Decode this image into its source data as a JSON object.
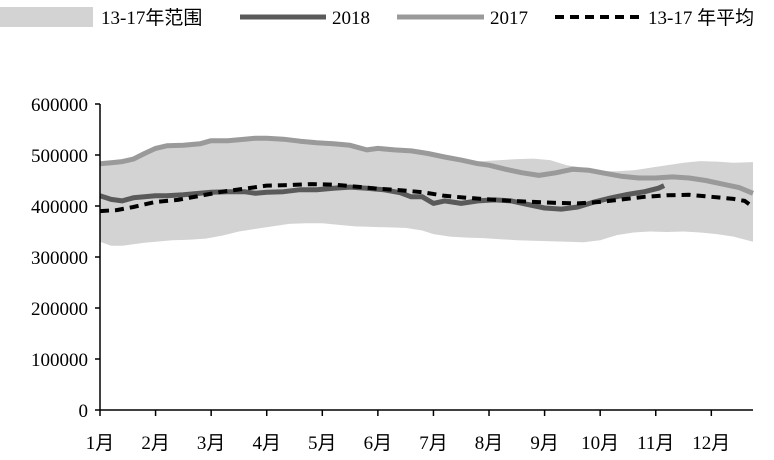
{
  "chart_data": {
    "type": "line",
    "xlabel": "",
    "ylabel": "",
    "x_tick_labels": [
      "1月",
      "2月",
      "3月",
      "4月",
      "5月",
      "6月",
      "7月",
      "8月",
      "9月",
      "10月",
      "11月",
      "12月"
    ],
    "y_tick_labels": [
      "0",
      "100000",
      "200000",
      "300000",
      "400000",
      "500000",
      "600000"
    ],
    "ylim": [
      0,
      600000
    ],
    "xlim": [
      1,
      12.75
    ],
    "grid": false,
    "legend_position": "top",
    "legend": {
      "range": "13-17年范围",
      "s2018": "2018",
      "s2017": "2017",
      "avg": "13-17 年平均"
    },
    "colors": {
      "range_fill": "#d3d3d3",
      "s2018": "#5a5a5a",
      "s2017": "#9a9a9a",
      "avg": "#000000"
    },
    "range": {
      "x": [
        1,
        1.2,
        1.4,
        1.6,
        1.8,
        2.0,
        2.3,
        2.6,
        2.9,
        3.2,
        3.5,
        3.8,
        4.1,
        4.4,
        4.7,
        5.0,
        5.3,
        5.6,
        5.9,
        6.2,
        6.5,
        6.8,
        7.0,
        7.3,
        7.6,
        7.9,
        8.2,
        8.5,
        8.8,
        9.1,
        9.4,
        9.7,
        10.0,
        10.3,
        10.6,
        10.9,
        11.2,
        11.5,
        11.8,
        12.1,
        12.4,
        12.75
      ],
      "upper": [
        485000,
        487000,
        490000,
        494000,
        505000,
        518000,
        520000,
        522000,
        528000,
        530000,
        533000,
        534000,
        532000,
        530000,
        527000,
        523000,
        519000,
        513000,
        511000,
        508000,
        505000,
        500000,
        497000,
        492000,
        488000,
        488000,
        490000,
        492000,
        493000,
        490000,
        480000,
        475000,
        468000,
        468000,
        470000,
        475000,
        480000,
        485000,
        488000,
        487000,
        485000,
        486000
      ],
      "lower": [
        330000,
        322000,
        322000,
        325000,
        328000,
        330000,
        333000,
        334000,
        336000,
        342000,
        350000,
        355000,
        360000,
        365000,
        366000,
        366000,
        363000,
        360000,
        359000,
        358000,
        357000,
        352000,
        345000,
        340000,
        338000,
        337000,
        335000,
        333000,
        332000,
        331000,
        330000,
        329000,
        333000,
        343000,
        348000,
        350000,
        349000,
        350000,
        348000,
        345000,
        340000,
        330000
      ]
    },
    "series": [
      {
        "key": "s2017",
        "name": "2017",
        "x": [
          1,
          1.2,
          1.4,
          1.6,
          1.8,
          2.0,
          2.2,
          2.5,
          2.8,
          3.0,
          3.3,
          3.6,
          3.8,
          4.0,
          4.3,
          4.6,
          4.9,
          5.2,
          5.5,
          5.8,
          6.0,
          6.3,
          6.6,
          6.9,
          7.2,
          7.5,
          7.8,
          8.0,
          8.3,
          8.6,
          8.9,
          9.2,
          9.5,
          9.8,
          10.1,
          10.4,
          10.7,
          11.0,
          11.3,
          11.6,
          11.9,
          12.2,
          12.5,
          12.75
        ],
        "values": [
          483000,
          485000,
          487000,
          492000,
          503000,
          513000,
          518000,
          519000,
          522000,
          528000,
          528000,
          531000,
          533000,
          533000,
          531000,
          527000,
          524000,
          522000,
          519000,
          510000,
          513000,
          510000,
          508000,
          503000,
          496000,
          490000,
          483000,
          480000,
          472000,
          465000,
          460000,
          465000,
          472000,
          470000,
          464000,
          458000,
          455000,
          455000,
          457000,
          455000,
          450000,
          443000,
          436000,
          425000
        ]
      },
      {
        "key": "s2018",
        "name": "2018",
        "x": [
          1,
          1.2,
          1.4,
          1.6,
          1.8,
          2.0,
          2.2,
          2.5,
          2.8,
          3.0,
          3.3,
          3.6,
          3.8,
          4.0,
          4.3,
          4.6,
          4.9,
          5.2,
          5.5,
          5.8,
          6.1,
          6.4,
          6.6,
          6.8,
          7.0,
          7.2,
          7.5,
          7.8,
          8.1,
          8.4,
          8.7,
          9.0,
          9.3,
          9.6,
          9.9,
          10.2,
          10.5,
          10.8,
          11.05,
          11.15
        ],
        "values": [
          420000,
          413000,
          410000,
          416000,
          418000,
          420000,
          420000,
          422000,
          425000,
          427000,
          428000,
          428000,
          425000,
          427000,
          428000,
          432000,
          432000,
          435000,
          437000,
          435000,
          432000,
          426000,
          418000,
          418000,
          405000,
          410000,
          405000,
          410000,
          412000,
          410000,
          403000,
          396000,
          394000,
          398000,
          408000,
          416000,
          423000,
          428000,
          435000,
          440000
        ]
      },
      {
        "key": "avg",
        "name": "13-17 年平均",
        "x": [
          1,
          1.3,
          1.6,
          2.0,
          2.4,
          2.8,
          3.2,
          3.6,
          4.0,
          4.4,
          4.8,
          5.2,
          5.6,
          6.0,
          6.4,
          6.8,
          7.2,
          7.6,
          8.0,
          8.4,
          8.8,
          9.2,
          9.6,
          10.0,
          10.4,
          10.8,
          11.2,
          11.6,
          12.0,
          12.4,
          12.6,
          12.75
        ],
        "values": [
          390000,
          392000,
          398000,
          408000,
          412000,
          420000,
          428000,
          434000,
          440000,
          441000,
          443000,
          442000,
          438000,
          434000,
          431000,
          427000,
          420000,
          416000,
          413000,
          410000,
          408000,
          406000,
          405000,
          408000,
          413000,
          418000,
          421000,
          422000,
          418000,
          414000,
          410000,
          398000
        ]
      }
    ]
  }
}
